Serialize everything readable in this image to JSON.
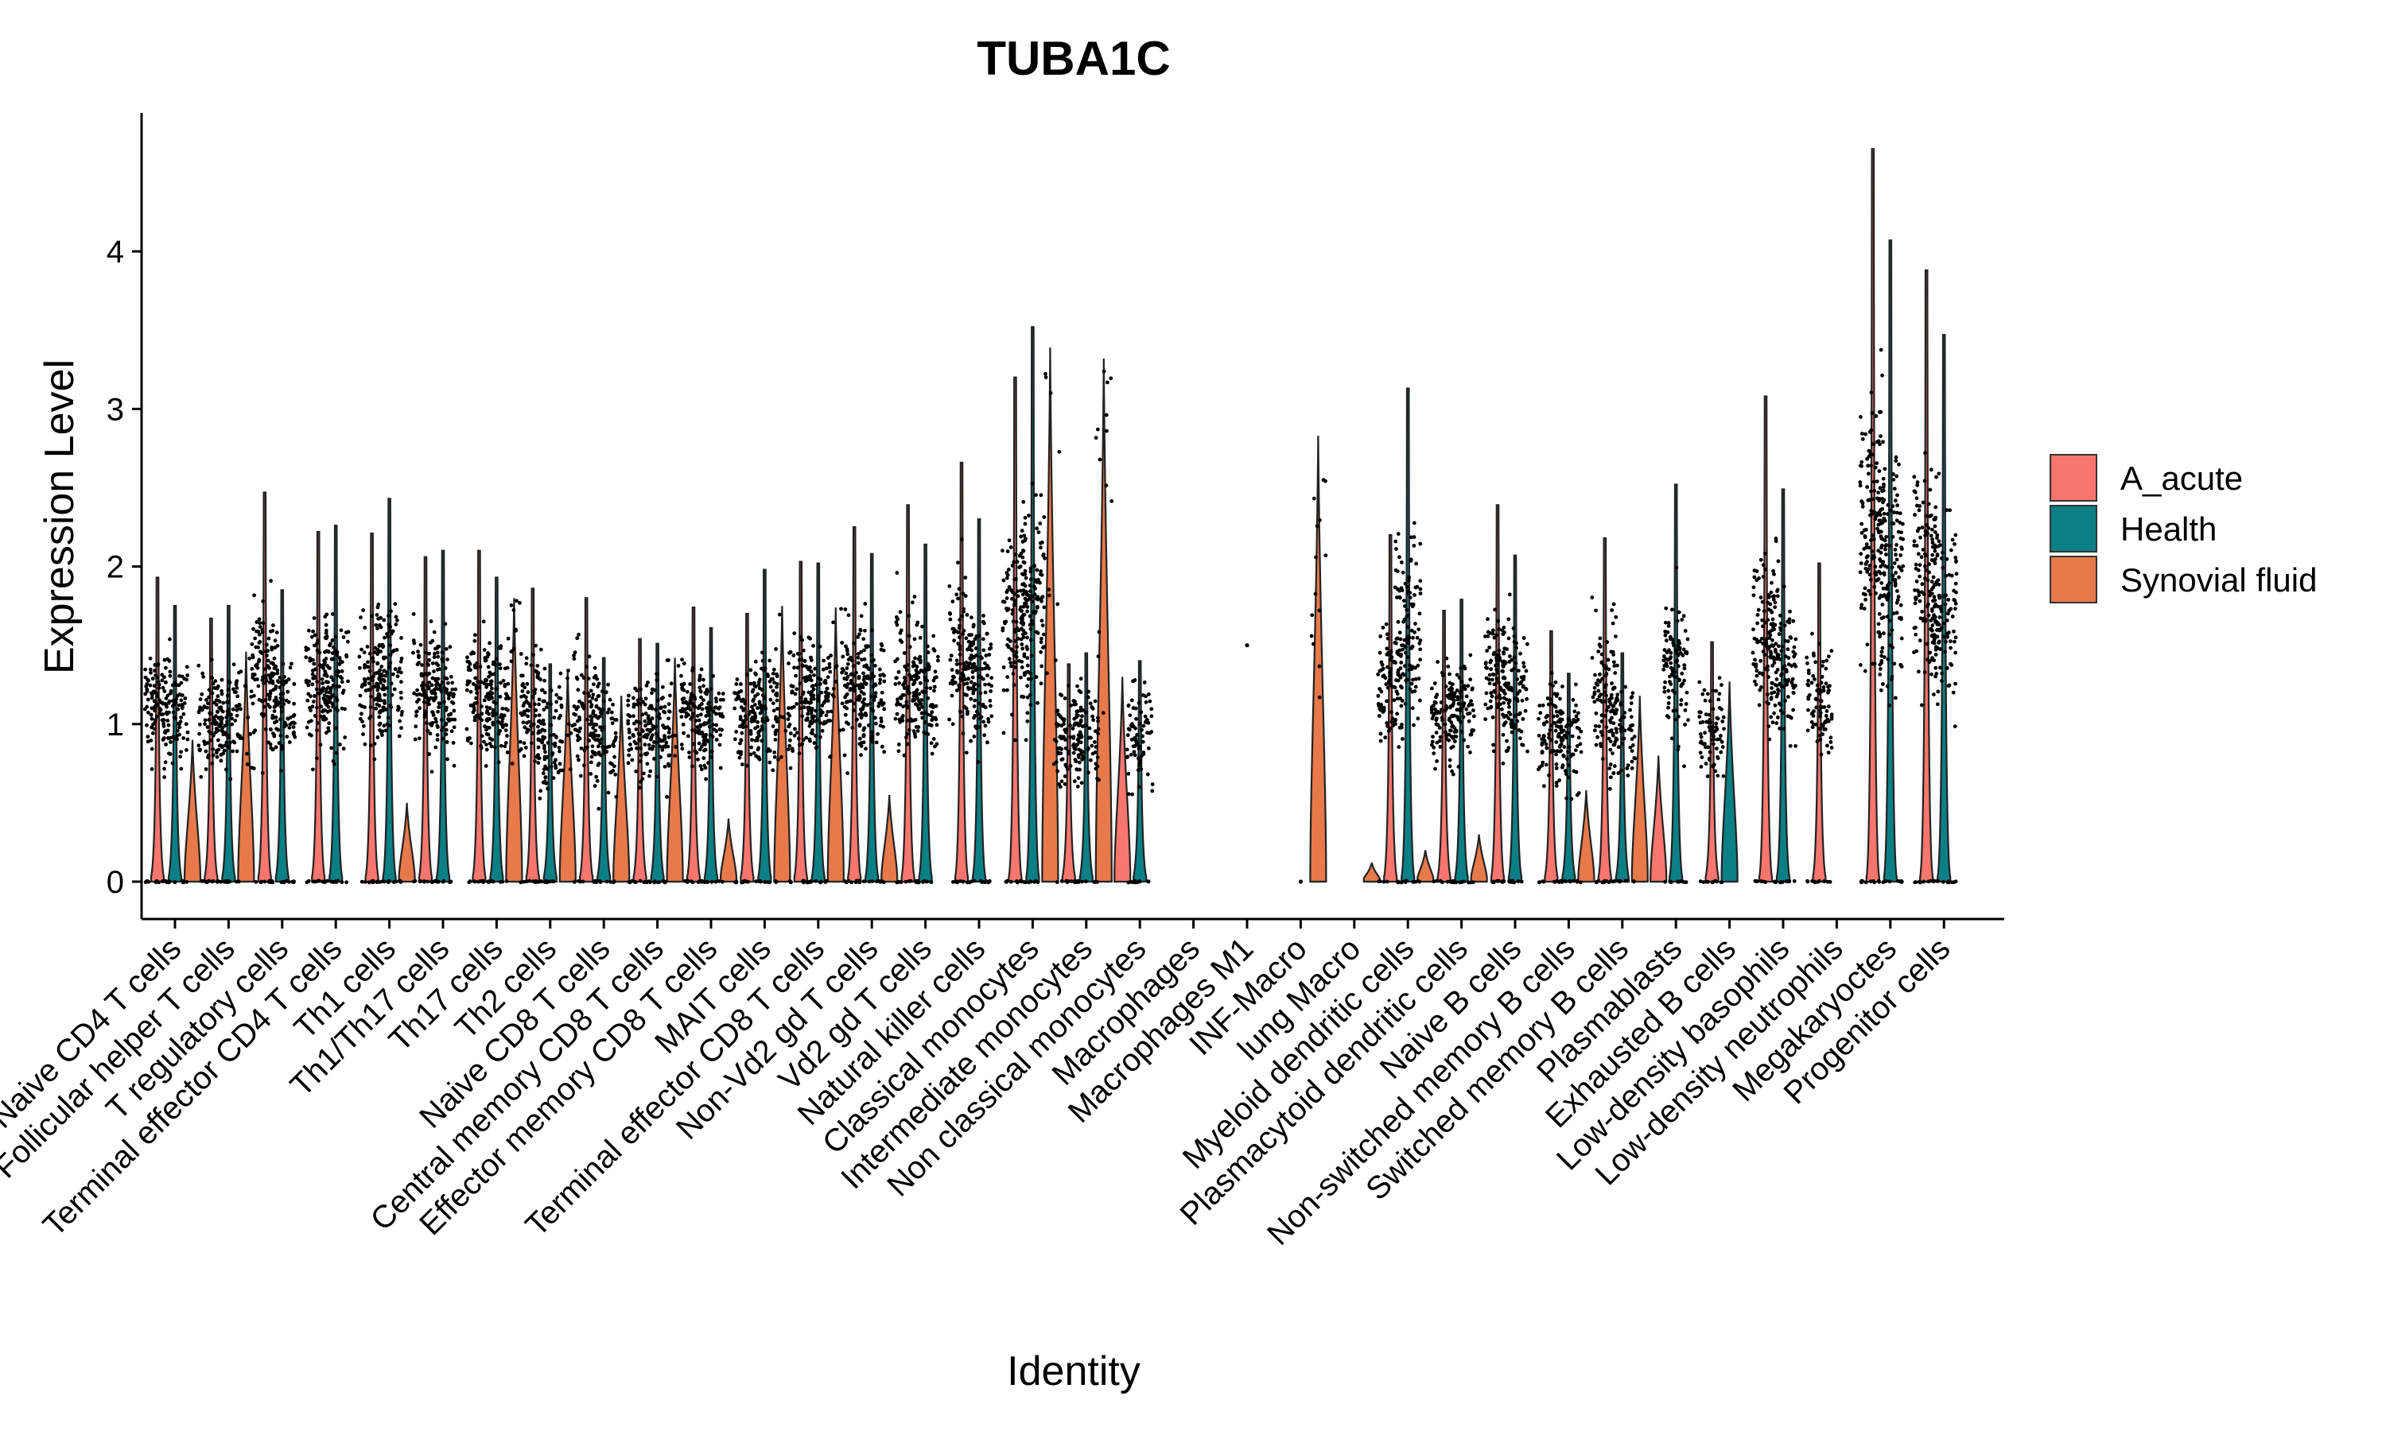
{
  "chart_data": {
    "type": "violin",
    "title": "TUBA1C",
    "xlabel": "Identity",
    "ylabel": "Expression Level",
    "ylim": [
      -0.2,
      4.85
    ],
    "yticks": [
      0,
      1,
      2,
      3,
      4
    ],
    "legend": {
      "position": "right",
      "entries": [
        {
          "name": "A_acute",
          "color": "#F8766D"
        },
        {
          "name": "Health",
          "color": "#0B7F86"
        },
        {
          "name": "Synovial fluid",
          "color": "#E8794A"
        }
      ]
    },
    "categories": [
      "Naive CD4 T cells",
      "Follicular helper T cells",
      "T regulatory cells",
      "Terminal effector CD4 T cells",
      "Th1 cells",
      "Th1/Th17 cells",
      "Th17 cells",
      "Th2 cells",
      "Naive CD8 T cells",
      "Central memory CD8 T cells",
      "Effector memory CD8 T cells",
      "MAIT cells",
      "Terminal effector CD8 T cells",
      "Non-Vd2 gd T cells",
      "Vd2 gd T cells",
      "Natural killer cells",
      "Classical monocytes",
      "Intermediate monocytes",
      "Non classical monocytes",
      "Macrophages",
      "Macrophages M1",
      "INF-Macro",
      "lung Macro",
      "Myeloid dendritic cells",
      "Plasmacytoid dendritic cells",
      "Naive B cells",
      "Non-switched memory B cells",
      "Switched memory B cells",
      "Plasmablasts",
      "Exhausted B cells",
      "Low-density basophils",
      "Low-density neutrophils",
      "Megakaryoctes",
      "Progenitor cells"
    ],
    "series": [
      {
        "name": "A_acute",
        "max": [
          1.93,
          1.67,
          2.47,
          2.22,
          2.21,
          2.06,
          2.1,
          1.86,
          1.8,
          1.54,
          1.74,
          1.7,
          2.03,
          2.25,
          2.39,
          2.66,
          3.2,
          1.38,
          1.3,
          0,
          0,
          0,
          0,
          2.2,
          1.72,
          2.39,
          1.59,
          2.18,
          0.8,
          1.52,
          3.08,
          2.02,
          4.65,
          3.88
        ]
      },
      {
        "name": "Health",
        "max": [
          1.75,
          1.75,
          1.85,
          2.26,
          2.43,
          2.1,
          1.93,
          1.38,
          1.42,
          1.51,
          1.61,
          1.98,
          2.02,
          2.08,
          2.14,
          2.3,
          3.52,
          1.45,
          1.4,
          0,
          0,
          0,
          0,
          3.13,
          1.79,
          2.07,
          1.32,
          1.45,
          2.52,
          1.27,
          2.49,
          0,
          4.07,
          3.47
        ]
      },
      {
        "name": "Synovial fluid",
        "max": [
          0.9,
          1.46,
          0,
          0,
          0.5,
          0,
          1.8,
          1.35,
          1.18,
          1.42,
          0.4,
          1.75,
          1.74,
          0.55,
          0,
          0,
          3.39,
          3.32,
          0,
          0,
          0,
          2.83,
          0.12,
          0.2,
          0.3,
          0,
          0.58,
          1.18,
          0,
          0,
          0,
          0,
          0,
          0
        ]
      }
    ]
  }
}
